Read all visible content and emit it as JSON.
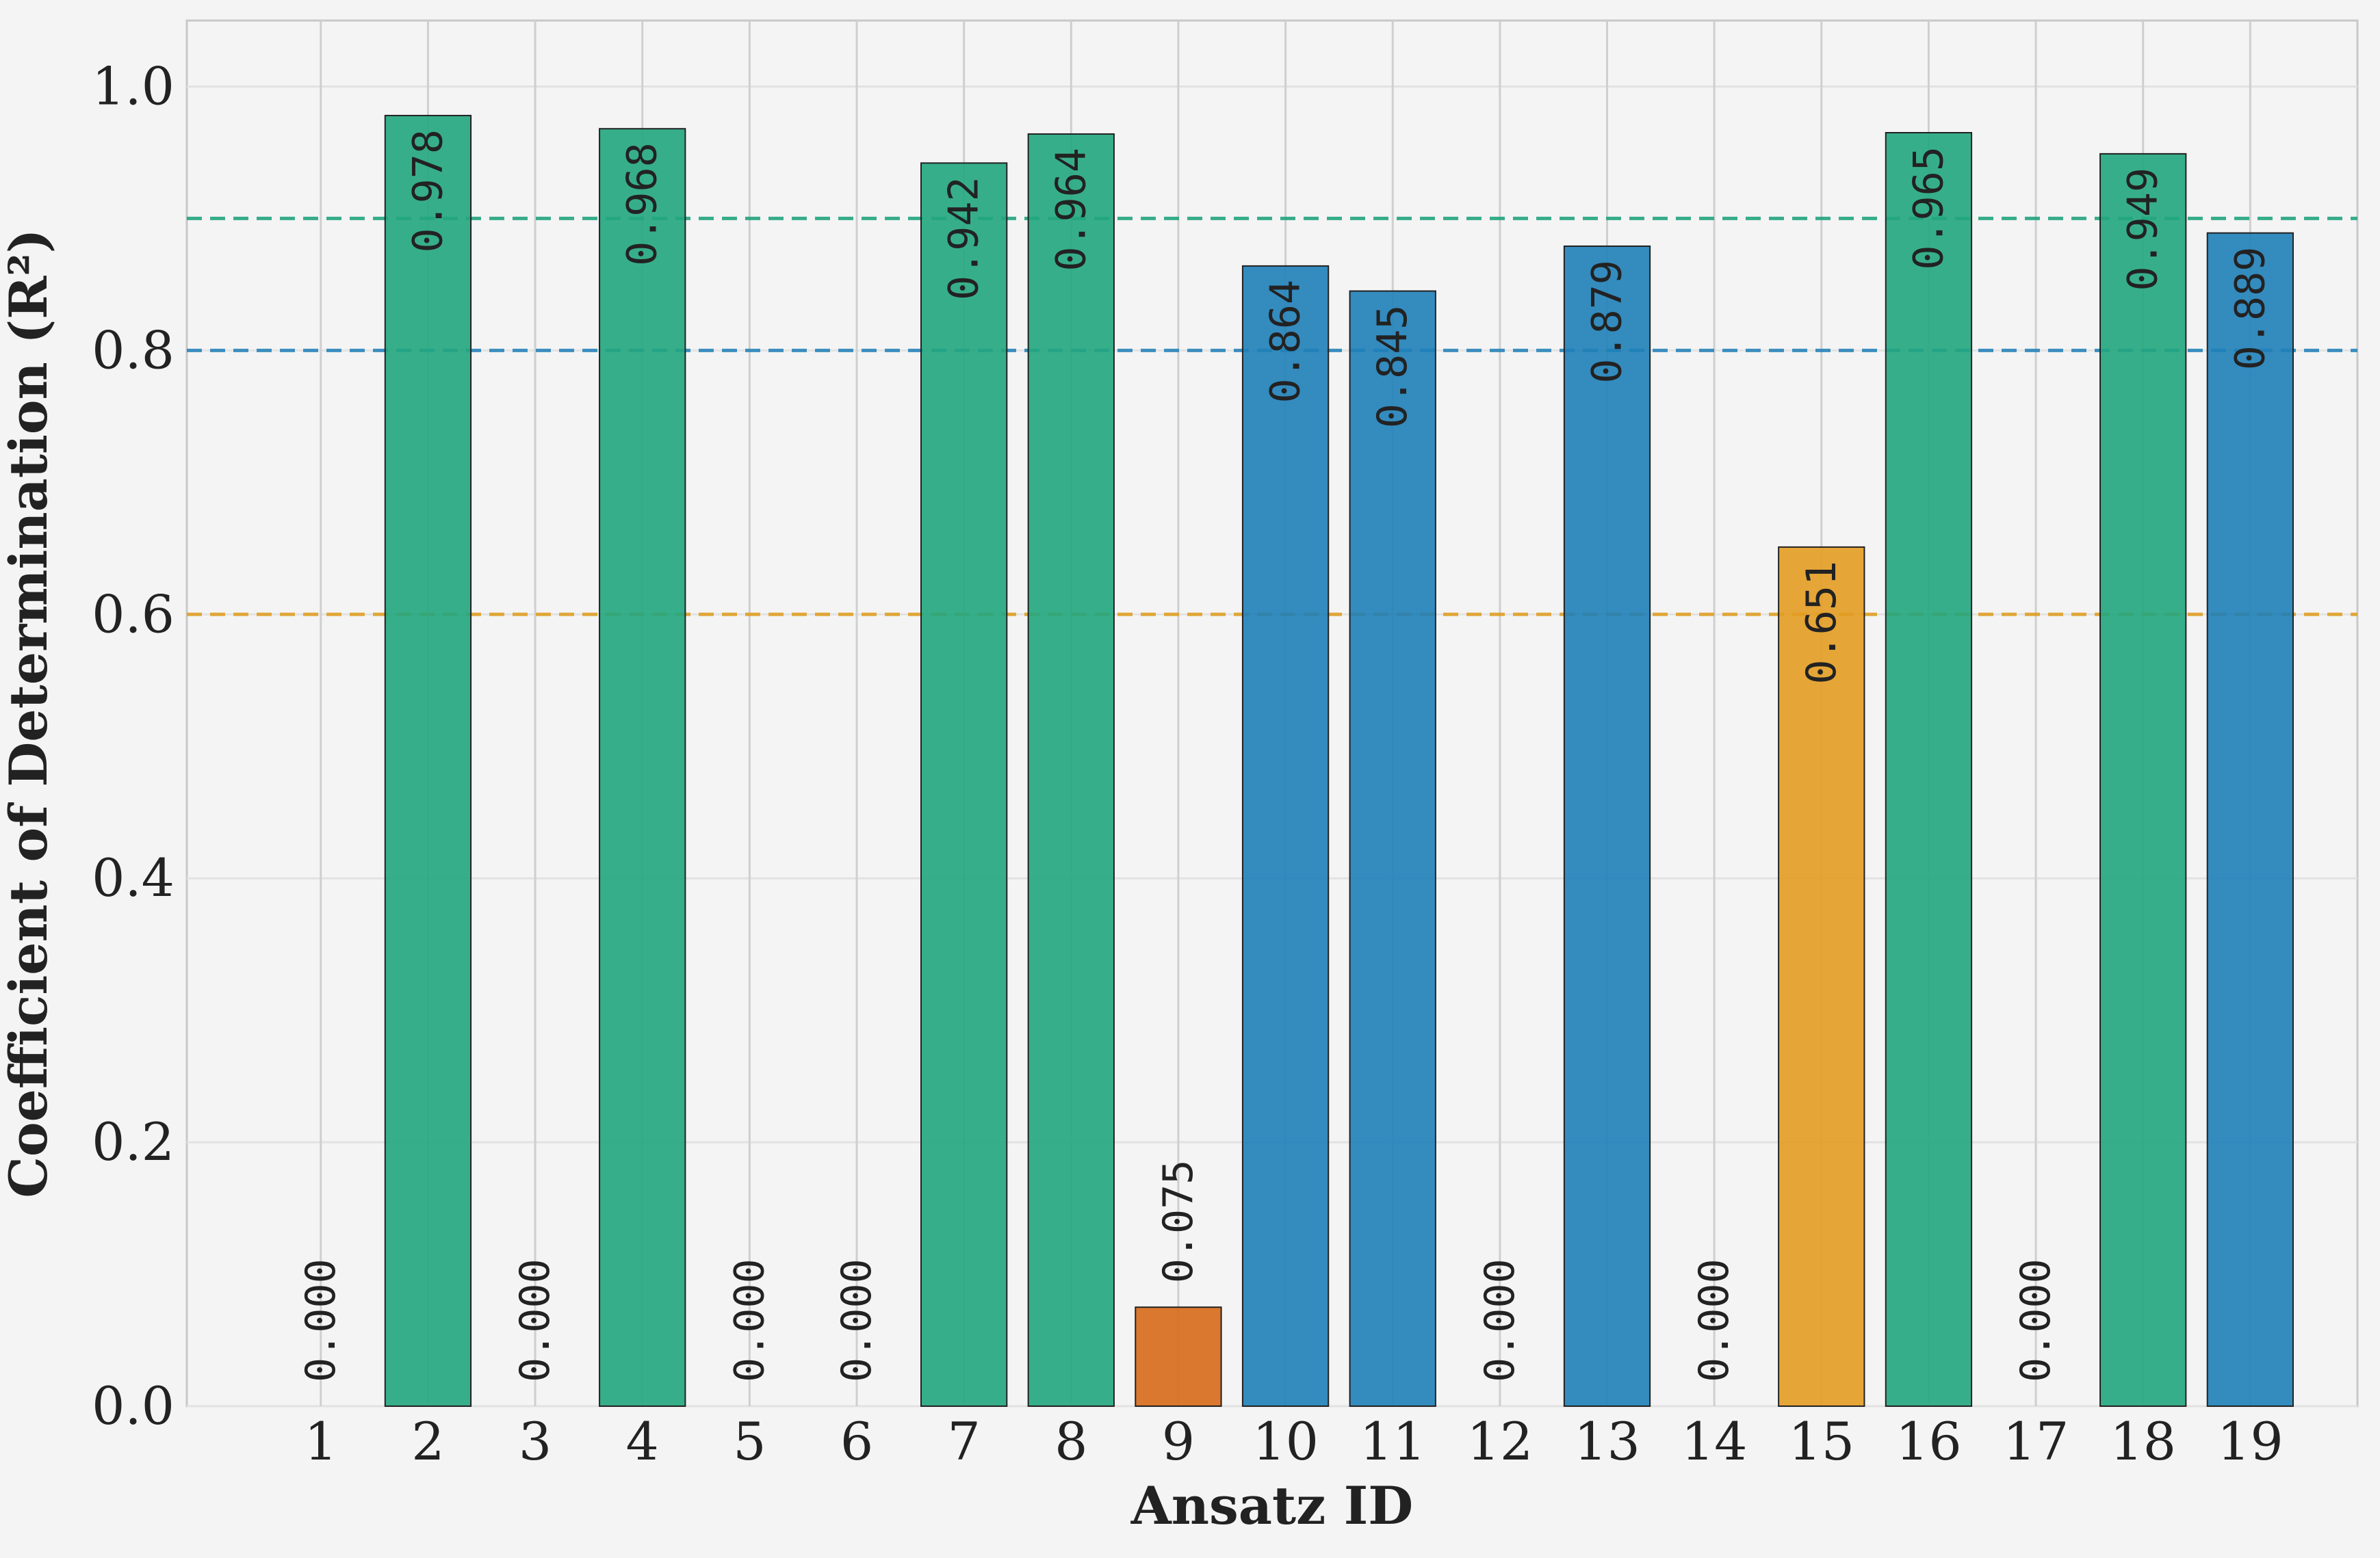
{
  "chart_data": {
    "type": "bar",
    "xlabel": "Ansatz ID",
    "ylabel": "Coefficient of Determination (R²)",
    "ylim": [
      0,
      1.05
    ],
    "yticks": [
      "0.0",
      "0.2",
      "0.4",
      "0.6",
      "0.8",
      "1.0"
    ],
    "grid": true,
    "categories": [
      "1",
      "2",
      "3",
      "4",
      "5",
      "6",
      "7",
      "8",
      "9",
      "10",
      "11",
      "12",
      "13",
      "14",
      "15",
      "16",
      "17",
      "18",
      "19"
    ],
    "values": [
      0.0,
      0.978,
      0.0,
      0.968,
      0.0,
      0.0,
      0.942,
      0.964,
      0.075,
      0.864,
      0.845,
      0.0,
      0.879,
      0.0,
      0.651,
      0.965,
      0.0,
      0.949,
      0.889
    ],
    "labels": [
      "0.000",
      "0.978",
      "0.000",
      "0.968",
      "0.000",
      "0.000",
      "0.942",
      "0.964",
      "0.075",
      "0.864",
      "0.845",
      "0.000",
      "0.879",
      "0.000",
      "0.651",
      "0.965",
      "0.000",
      "0.949",
      "0.889"
    ],
    "reference_lines": [
      {
        "y": 0.9,
        "color": "#16a077"
      },
      {
        "y": 0.8,
        "color": "#1f7fb8"
      },
      {
        "y": 0.6,
        "color": "#e09c1c"
      }
    ],
    "colors": {
      "excellent": "#22a67e",
      "good": "#1f7fb8",
      "moderate": "#e39c22",
      "poor": "#d86a1a"
    }
  }
}
